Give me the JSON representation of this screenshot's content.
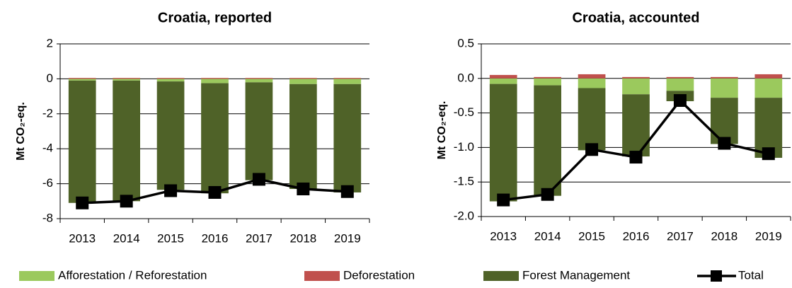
{
  "chart_data": [
    {
      "type": "bar",
      "title": "Croatia, reported",
      "y_label": "Mt CO₂-eq.",
      "categories": [
        "2013",
        "2014",
        "2015",
        "2016",
        "2017",
        "2018",
        "2019"
      ],
      "ylim": [
        -8,
        2
      ],
      "yticks": [
        -8,
        -6,
        -4,
        -2,
        0,
        2
      ],
      "grid": true,
      "series": [
        {
          "name": "Afforestation / Reforestation",
          "color": "#9bc95d",
          "values": [
            -0.1,
            -0.1,
            -0.15,
            -0.25,
            -0.2,
            -0.3,
            -0.3
          ]
        },
        {
          "name": "Deforestation",
          "color": "#c0504d",
          "values": [
            0.05,
            0.05,
            0.05,
            0.05,
            0.05,
            0.05,
            0.05
          ]
        },
        {
          "name": "Forest Management",
          "color": "#4f6228",
          "values": [
            -7.0,
            -6.9,
            -6.2,
            -6.3,
            -5.6,
            -6.0,
            -6.2
          ]
        },
        {
          "name": "Total",
          "color": "#000000",
          "type": "line",
          "values": [
            -7.1,
            -7.0,
            -6.4,
            -6.5,
            -5.75,
            -6.3,
            -6.45
          ]
        }
      ]
    },
    {
      "type": "bar",
      "title": "Croatia, accounted",
      "y_label": "Mt CO₂-eq.",
      "categories": [
        "2013",
        "2014",
        "2015",
        "2016",
        "2017",
        "2018",
        "2019"
      ],
      "ylim": [
        -2,
        0.5
      ],
      "yticks": [
        {
          "value": -2,
          "label": "-2.0"
        },
        -1.5,
        {
          "value": -1,
          "label": "-1.0"
        },
        -0.5,
        {
          "value": 0,
          "label": "0.0"
        },
        0.5
      ],
      "grid": true,
      "series": [
        {
          "name": "Afforestation / Reforestation",
          "color": "#9bc95d",
          "values": [
            -0.08,
            -0.1,
            -0.14,
            -0.23,
            -0.18,
            -0.28,
            -0.28
          ]
        },
        {
          "name": "Deforestation",
          "color": "#c0504d",
          "values": [
            0.05,
            0.02,
            0.06,
            0.02,
            0.02,
            0.02,
            0.06
          ]
        },
        {
          "name": "Forest Management",
          "color": "#4f6228",
          "values": [
            -1.7,
            -1.6,
            -0.9,
            -0.9,
            -0.15,
            -0.67,
            -0.87
          ]
        },
        {
          "name": "Total",
          "color": "#000000",
          "type": "line",
          "values": [
            -1.76,
            -1.68,
            -1.03,
            -1.14,
            -0.32,
            -0.94,
            -1.09
          ]
        }
      ]
    }
  ]
}
